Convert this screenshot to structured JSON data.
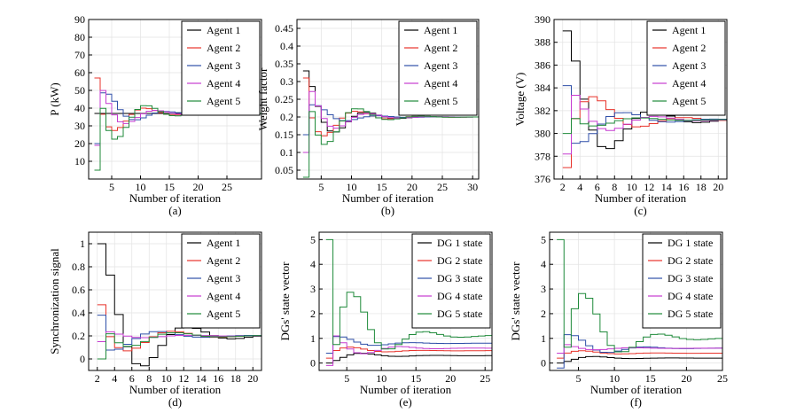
{
  "colors": {
    "Agent 1": "#000000",
    "Agent 2": "#e8332b",
    "Agent 3": "#2f4fa8",
    "Agent 4": "#c63bd0",
    "Agent 5": "#1f8a3a",
    "DG 1 state": "#000000",
    "DG 2 state": "#e8332b",
    "DG 3 state": "#2f4fa8",
    "DG 4 state": "#c63bd0",
    "DG 5 state": "#1f8a3a"
  },
  "chart_data": [
    {
      "panel": "(a)",
      "type": "line",
      "step": true,
      "xlabel": "Number of iteration",
      "ylabel": "P (kW)",
      "xlim": [
        1,
        31
      ],
      "ylim": [
        0,
        90
      ],
      "xticks": [
        5,
        10,
        15,
        20,
        25
      ],
      "yticks": [
        10,
        20,
        30,
        40,
        50,
        60,
        70,
        80,
        90
      ],
      "legend": "top-right",
      "series": [
        {
          "name": "Agent 1",
          "initial": 37,
          "final": 37
        },
        {
          "name": "Agent 2",
          "initial": 57,
          "final": 37
        },
        {
          "name": "Agent 3",
          "initial": 20,
          "final": 37
        },
        {
          "name": "Agent 4",
          "initial": 19,
          "final": 37
        },
        {
          "name": "Agent 5",
          "initial": 5,
          "final": 37
        }
      ]
    },
    {
      "panel": "(b)",
      "type": "line",
      "step": true,
      "xlabel": "Number of iteration",
      "ylabel": "Weight factor",
      "xlim": [
        1,
        31
      ],
      "ylim": [
        0.025,
        0.475
      ],
      "xticks": [
        5,
        10,
        15,
        20,
        25,
        30
      ],
      "yticks": [
        0.05,
        0.1,
        0.15,
        0.2,
        0.25,
        0.3,
        0.35,
        0.4,
        0.45
      ],
      "legend": "top-right",
      "series": [
        {
          "name": "Agent 1",
          "initial": 0.33,
          "final": 0.2
        },
        {
          "name": "Agent 2",
          "initial": 0.31,
          "final": 0.2
        },
        {
          "name": "Agent 3",
          "initial": 0.15,
          "final": 0.2
        },
        {
          "name": "Agent 4",
          "initial": 0.1,
          "final": 0.2
        },
        {
          "name": "Agent 5",
          "initial": 0.03,
          "final": 0.2
        }
      ]
    },
    {
      "panel": "(c)",
      "type": "line",
      "step": true,
      "xlabel": "Number of iteration",
      "ylabel": "Voltage (V)",
      "xlim": [
        1,
        21
      ],
      "ylim": [
        376,
        390
      ],
      "xticks": [
        2,
        4,
        6,
        8,
        10,
        12,
        14,
        16,
        18,
        20
      ],
      "yticks": [
        376,
        378,
        380,
        382,
        384,
        386,
        388,
        390
      ],
      "legend": "top-right",
      "series": [
        {
          "name": "Agent 1",
          "initial": 389,
          "final": 381.2
        },
        {
          "name": "Agent 2",
          "initial": 377,
          "final": 381.2
        },
        {
          "name": "Agent 3",
          "initial": 384.2,
          "final": 381.2
        },
        {
          "name": "Agent 4",
          "initial": 378.2,
          "final": 381.2
        },
        {
          "name": "Agent 5",
          "initial": 380,
          "final": 381.2
        }
      ]
    },
    {
      "panel": "(d)",
      "type": "line",
      "step": true,
      "xlabel": "Number of iteration",
      "ylabel": "Synchronization signal",
      "xlim": [
        1,
        21
      ],
      "ylim": [
        -0.1,
        1.1
      ],
      "xticks": [
        2,
        4,
        6,
        8,
        10,
        12,
        14,
        16,
        18,
        20
      ],
      "yticks": [
        0.0,
        0.2,
        0.4,
        0.6,
        0.8,
        1.0
      ],
      "legend": "top-right",
      "series": [
        {
          "name": "Agent 1",
          "initial": 1.0,
          "final": 0.2
        },
        {
          "name": "Agent 2",
          "initial": 0.47,
          "final": 0.2
        },
        {
          "name": "Agent 3",
          "initial": 0.38,
          "final": 0.2
        },
        {
          "name": "Agent 4",
          "initial": 0.15,
          "final": 0.2
        },
        {
          "name": "Agent 5",
          "initial": 0.0,
          "final": 0.2
        }
      ]
    },
    {
      "panel": "(e)",
      "type": "line",
      "step": true,
      "xlabel": "Number of iteration",
      "ylabel": "DGs' state vector",
      "xlim": [
        1,
        26
      ],
      "ylim": [
        -0.3,
        5.3
      ],
      "xticks": [
        5,
        10,
        15,
        20,
        25
      ],
      "yticks": [
        0,
        1,
        2,
        3,
        4,
        5
      ],
      "legend": "top-right",
      "series": [
        {
          "name": "DG 1 state",
          "initial": 0.0,
          "final": 0.3
        },
        {
          "name": "DG 2 state",
          "initial": 0.2,
          "final": 0.5
        },
        {
          "name": "DG 3 state",
          "initial": 0.4,
          "final": 0.8
        },
        {
          "name": "DG 4 state",
          "initial": -0.1,
          "final": 0.6
        },
        {
          "name": "DG 5 state",
          "initial": 5.0,
          "final": 1.1
        }
      ]
    },
    {
      "panel": "(f)",
      "type": "line",
      "step": true,
      "xlabel": "Number of iteration",
      "ylabel": "DGs' state vector",
      "xlim": [
        1,
        25
      ],
      "ylim": [
        -0.3,
        5.3
      ],
      "xticks": [
        5,
        10,
        15,
        20,
        25
      ],
      "xticklabels": [
        "5",
        "10",
        "15",
        "20",
        "25"
      ],
      "yticks": [
        0,
        1,
        2,
        3,
        4,
        5
      ],
      "legend": "top-right",
      "series": [
        {
          "name": "DG 1 state",
          "initial": 0.0,
          "final": 0.2
        },
        {
          "name": "DG 2 state",
          "initial": 0.2,
          "final": 0.4
        },
        {
          "name": "DG 3 state",
          "initial": -0.2,
          "final": 0.6
        },
        {
          "name": "DG 4 state",
          "initial": 0.4,
          "final": 0.6
        },
        {
          "name": "DG 5 state",
          "initial": 5.0,
          "final": 1.0
        }
      ]
    }
  ]
}
